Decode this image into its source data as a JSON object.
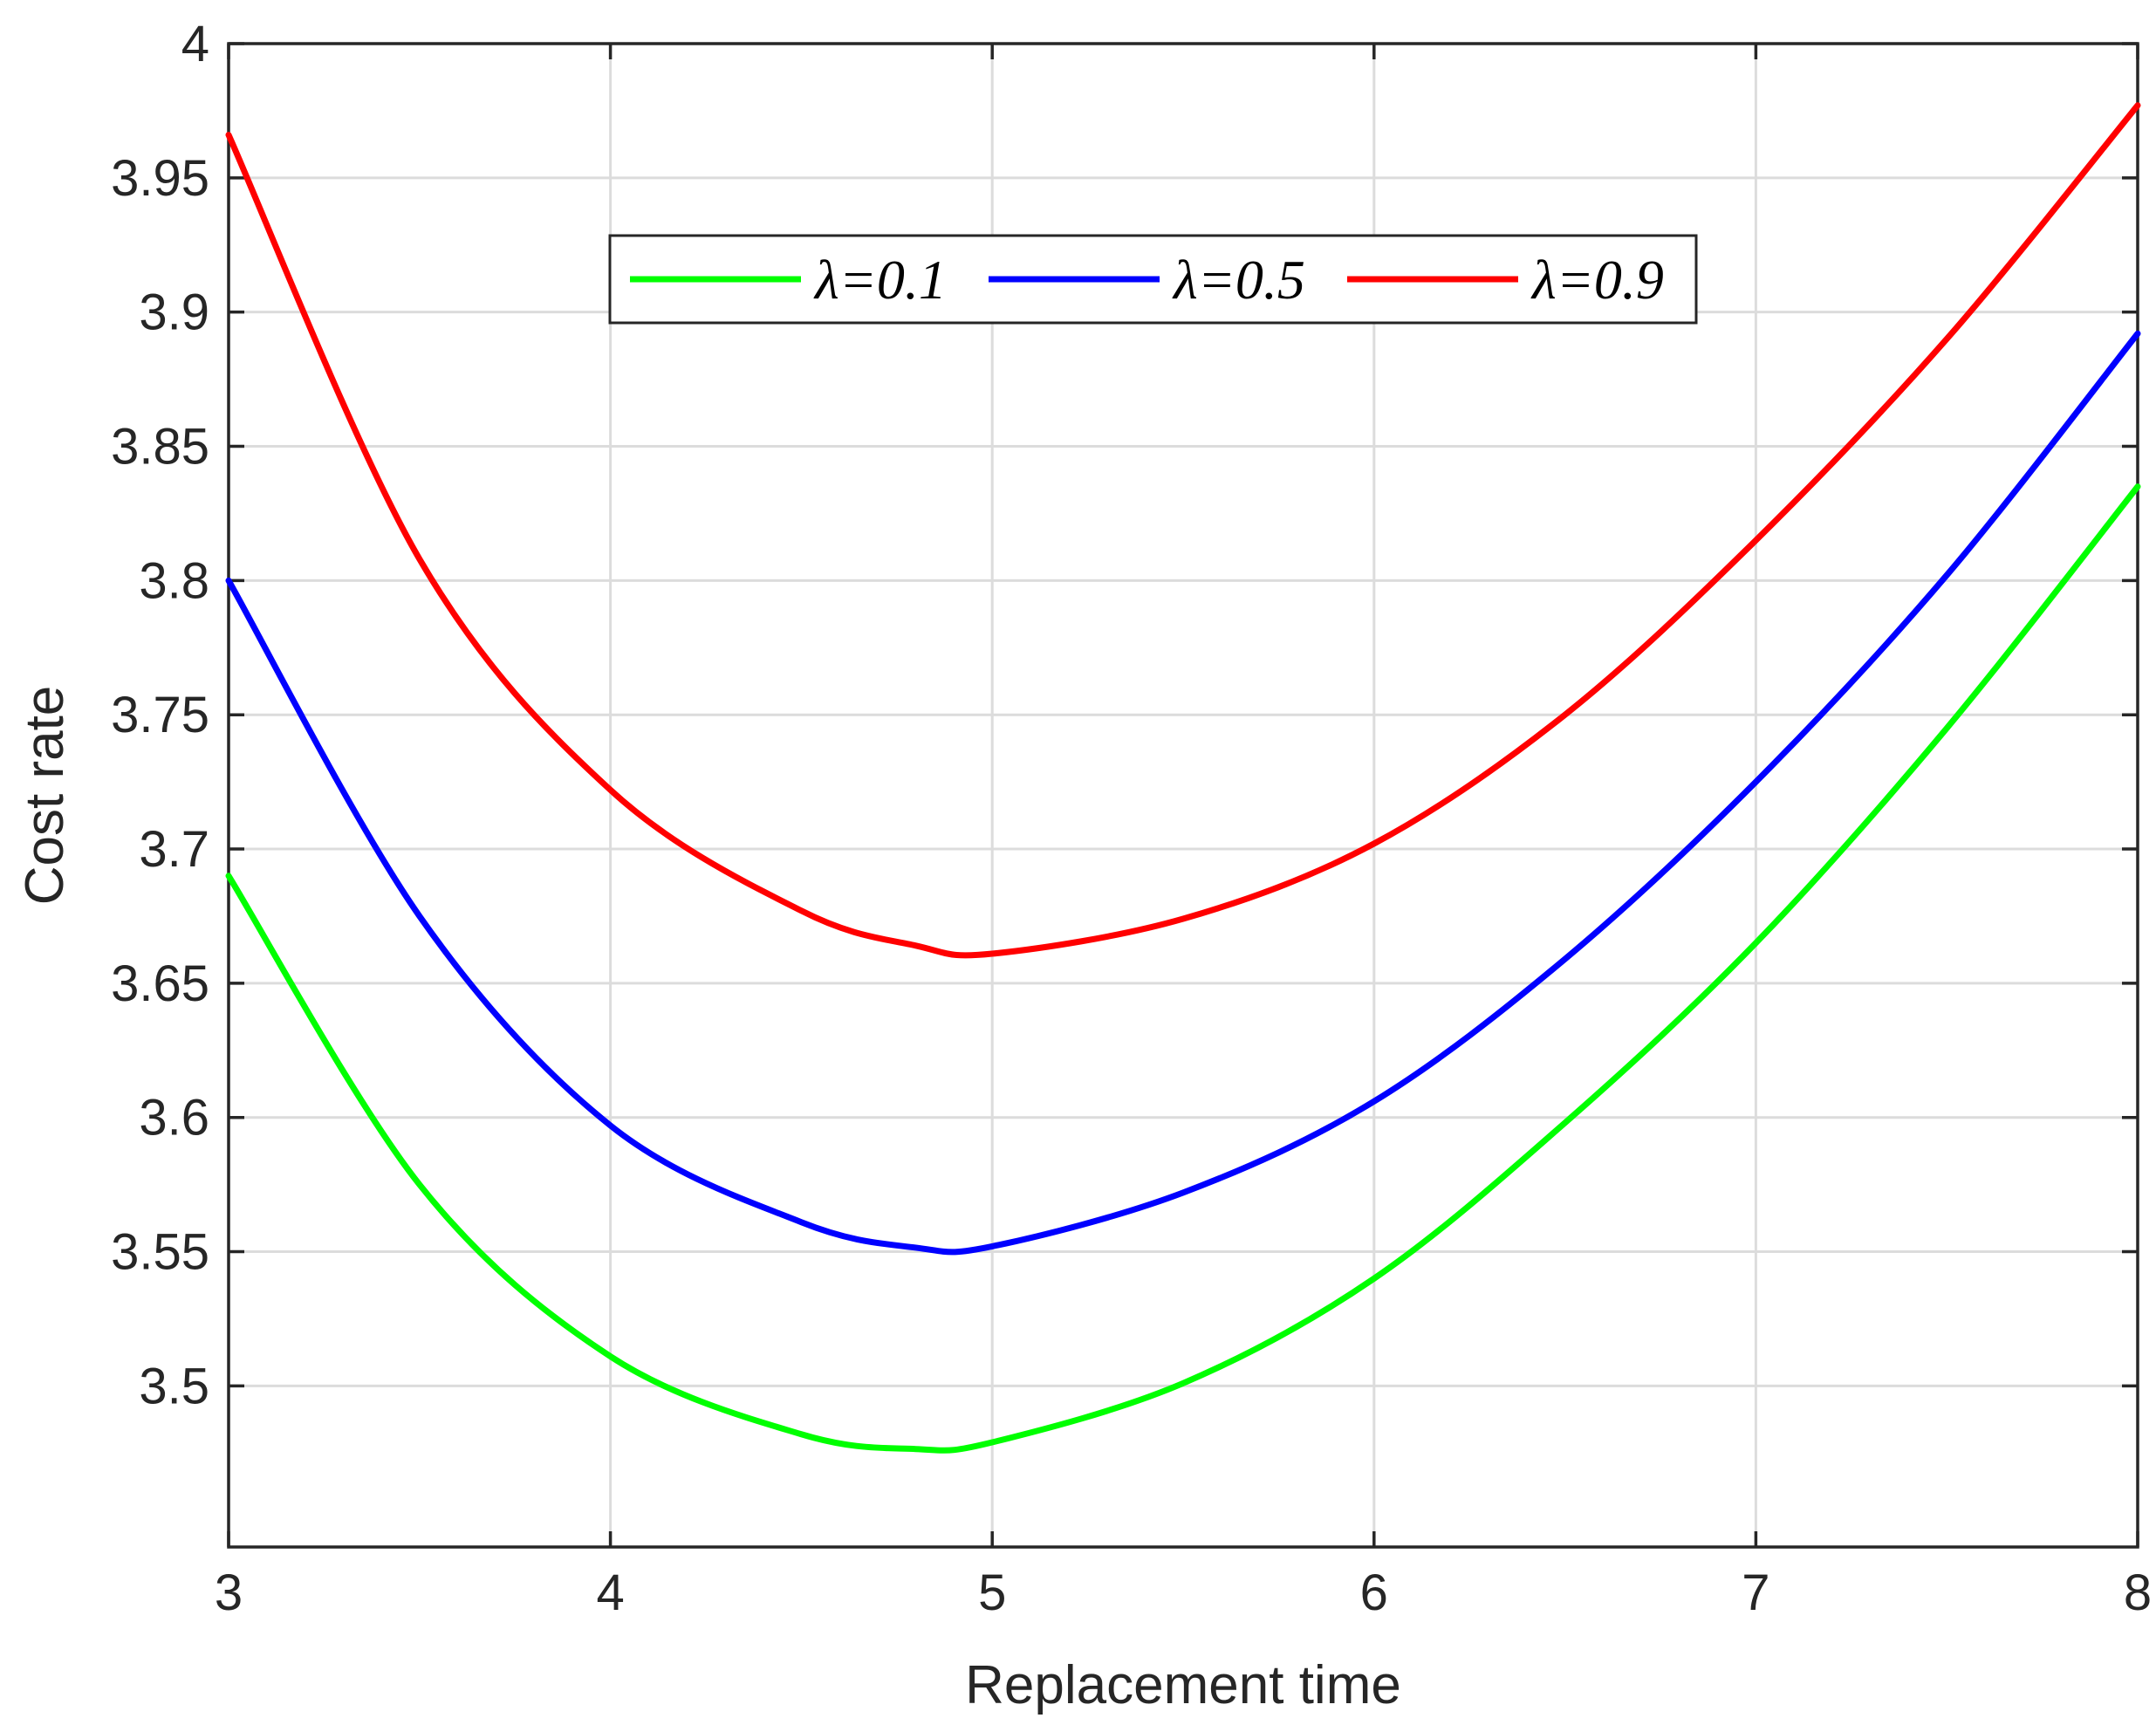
{
  "chart_data": {
    "type": "line",
    "xlabel": "Replacement time",
    "ylabel": "Cost rate",
    "xlim": [
      3,
      8
    ],
    "ylim": [
      3.44,
      4
    ],
    "xticks": [
      "3",
      "4",
      "5",
      "6",
      "7",
      "8"
    ],
    "yticks": [
      "3.5",
      "3.55",
      "3.6",
      "3.65",
      "3.7",
      "3.75",
      "3.8",
      "3.85",
      "3.9",
      "3.95",
      "4"
    ],
    "grid": true,
    "legend_position": "top-center",
    "legend_orientation": "horizontal",
    "x": [
      3,
      3.5,
      4,
      4.5,
      4.8,
      5,
      5.5,
      6,
      6.5,
      7,
      7.5,
      8
    ],
    "series": [
      {
        "name": "λ=0.1",
        "color": "#00ff00",
        "values": [
          3.69,
          3.575,
          3.511,
          3.482,
          3.4765,
          3.479,
          3.501,
          3.54,
          3.598,
          3.665,
          3.745,
          3.835
        ]
      },
      {
        "name": "λ=0.5",
        "color": "#0000ff",
        "values": [
          3.8,
          3.675,
          3.597,
          3.561,
          3.5515,
          3.552,
          3.572,
          3.606,
          3.659,
          3.725,
          3.802,
          3.892
        ]
      },
      {
        "name": "λ=0.9",
        "color": "#ff0000",
        "values": [
          3.966,
          3.808,
          3.722,
          3.677,
          3.664,
          3.661,
          3.674,
          3.702,
          3.75,
          3.815,
          3.89,
          3.977
        ]
      }
    ]
  }
}
